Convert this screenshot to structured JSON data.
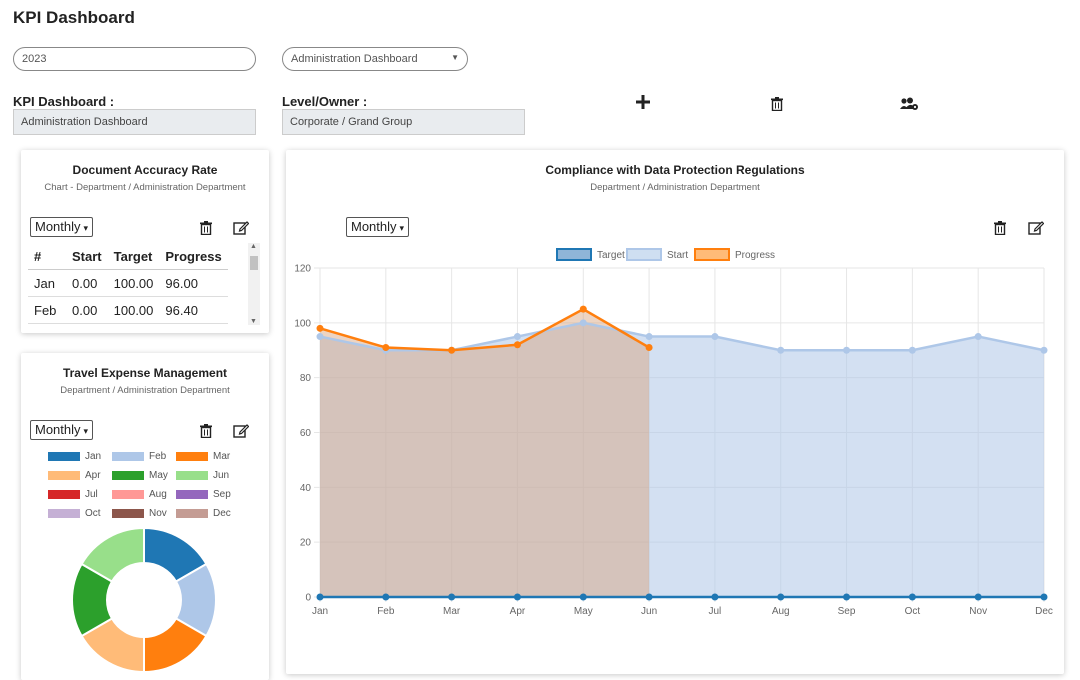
{
  "page": {
    "title": "KPI Dashboard"
  },
  "filters": {
    "year_value": "2023",
    "dashboard_select": "Administration Dashboard",
    "kpi_dashboard_label": "KPI Dashboard :",
    "kpi_dashboard_value": "Administration Dashboard",
    "level_owner_label": "Level/Owner :",
    "level_owner_value": "Corporate / Grand Group"
  },
  "toolbar_icons": [
    "plus-icon",
    "trash-icon",
    "users-cog-icon"
  ],
  "card1": {
    "title": "Document Accuracy Rate",
    "subtitle": "Chart - Department / Administration Department",
    "period": "Monthly",
    "columns": [
      "#",
      "Start",
      "Target",
      "Progress"
    ],
    "rows": [
      [
        "Jan",
        "0.00",
        "100.00",
        "96.00"
      ],
      [
        "Feb",
        "0.00",
        "100.00",
        "96.40"
      ]
    ]
  },
  "card2": {
    "title": "Travel Expense Management",
    "subtitle": "Department / Administration Department",
    "period": "Monthly"
  },
  "card3": {
    "title": "Compliance with Data Protection Regulations",
    "subtitle": "Department / Administration Department",
    "period": "Monthly"
  },
  "chart_data": [
    {
      "type": "pie",
      "title": "Travel Expense Management",
      "categories": [
        "Jan",
        "Feb",
        "Mar",
        "Apr",
        "May",
        "Jun",
        "Jul",
        "Aug",
        "Sep",
        "Oct",
        "Nov",
        "Dec"
      ],
      "values": [
        1,
        1,
        1,
        1,
        1,
        1,
        0,
        0,
        0,
        0,
        0,
        0
      ],
      "colors": [
        "#1f77b4",
        "#aec7e8",
        "#ff7f0e",
        "#ffbb78",
        "#2ca02c",
        "#98df8a",
        "#d62728",
        "#ff9896",
        "#9467bd",
        "#c5b0d5",
        "#8c564b",
        "#c49c94"
      ],
      "legend": "top"
    },
    {
      "type": "area",
      "title": "Compliance with Data Protection Regulations",
      "categories": [
        "Jan",
        "Feb",
        "Mar",
        "Apr",
        "May",
        "Jun",
        "Jul",
        "Aug",
        "Sep",
        "Oct",
        "Nov",
        "Dec"
      ],
      "ylim": [
        0,
        120
      ],
      "yticks": [
        0,
        20,
        40,
        60,
        80,
        100,
        120
      ],
      "grid": true,
      "legend": "top",
      "series": [
        {
          "name": "Target",
          "color": "#1f77b4",
          "fill": "#8fb5d8",
          "values": [
            0,
            0,
            0,
            0,
            0,
            0,
            0,
            0,
            0,
            0,
            0,
            0
          ]
        },
        {
          "name": "Start",
          "color": "#aec7e8",
          "fill": "#cfdff1",
          "values": [
            95,
            90,
            90,
            95,
            100,
            95,
            95,
            90,
            90,
            90,
            95,
            90
          ]
        },
        {
          "name": "Progress",
          "color": "#ff7f0e",
          "fill": "#ffbb78",
          "values": [
            98,
            91,
            90,
            92,
            105,
            91,
            null,
            null,
            null,
            null,
            null,
            null
          ]
        }
      ]
    }
  ]
}
